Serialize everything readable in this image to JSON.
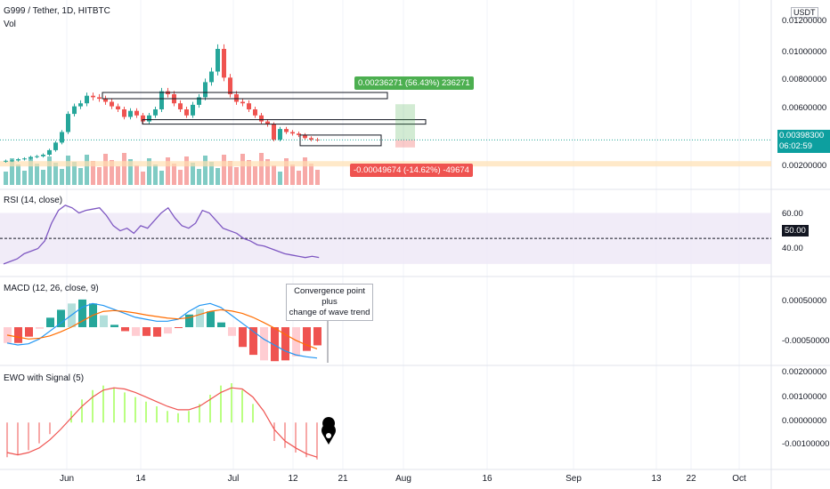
{
  "header": {
    "symbol": "G999 / Tether, 1D, HITBTC",
    "vol": "Vol",
    "currency": "USDT"
  },
  "price_axis": [
    "0.01200000",
    "0.01000000",
    "0.00800000",
    "0.00600000",
    "0.00200000"
  ],
  "current": {
    "price": "0.00398300",
    "countdown": "06:02:59"
  },
  "long_label": "0.00236271 (56.43%) 236271",
  "short_label": "-0.00049674 (-14.62%) -49674",
  "rsi": {
    "title": "RSI (14, close)",
    "ticks": [
      "60.00",
      "40.00"
    ],
    "mid": "50.00"
  },
  "macd": {
    "title": "MACD (12, 26, close, 9)",
    "ticks": [
      "0.00050000",
      "-0.00050000"
    ],
    "annotation_line1": "Convergence point plus",
    "annotation_line2": "change of wave trend"
  },
  "ewo": {
    "title": "EWO with Signal (5)",
    "ticks": [
      "0.00200000",
      "0.00100000",
      "0.00000000",
      "-0.00100000"
    ]
  },
  "x_axis": [
    "Jun",
    "14",
    "Jul",
    "12",
    "21",
    "Aug",
    "16",
    "Sep",
    "13",
    "22",
    "Oct"
  ],
  "colors": {
    "up": "#26a69a",
    "down": "#ef5350",
    "rsi_line": "#7e57c2",
    "macd_line": "#2196f3",
    "signal_line": "#ff6d00",
    "ewo_up": "#76ff03",
    "ewo_down": "#ef5350"
  },
  "chart_data": {
    "type": "candlestick",
    "interval": "1D",
    "closes": [
      0.0026,
      0.00262,
      0.0027,
      0.00275,
      0.00285,
      0.0029,
      0.003,
      0.0033,
      0.0038,
      0.0045,
      0.0057,
      0.0062,
      0.0064,
      0.0069,
      0.0068,
      0.0067,
      0.0065,
      0.0062,
      0.006,
      0.0055,
      0.0059,
      0.0056,
      0.0052,
      0.0056,
      0.006,
      0.0072,
      0.007,
      0.0064,
      0.006,
      0.0056,
      0.0063,
      0.0068,
      0.0078,
      0.0085,
      0.01,
      0.0081,
      0.007,
      0.0065,
      0.0064,
      0.006,
      0.0056,
      0.0052,
      0.005,
      0.004,
      0.0047,
      0.0045,
      0.0044,
      0.0043,
      0.0041,
      0.004,
      0.00398
    ],
    "rsi": [
      30,
      32,
      34,
      38,
      40,
      42,
      48,
      62,
      72,
      76,
      74,
      70,
      72,
      73,
      74,
      68,
      60,
      56,
      58,
      54,
      60,
      58,
      64,
      70,
      74,
      66,
      60,
      58,
      62,
      72,
      70,
      64,
      58,
      56,
      54,
      50,
      48,
      45,
      44,
      42,
      40,
      38,
      37,
      36,
      35,
      36,
      35
    ],
    "macd": [
      -0.0004,
      -0.00045,
      -0.00042,
      -0.0003,
      -0.0001,
      0.0001,
      0.0003,
      0.0005,
      0.0006,
      0.00055,
      0.00045,
      0.00035,
      0.00025,
      0.0002,
      0.00015,
      0.00015,
      0.0002,
      0.0004,
      0.00055,
      0.0006,
      0.0005,
      0.0003,
      0.0001,
      -0.0001,
      -0.0003,
      -0.00045,
      -0.0006,
      -0.0007,
      -0.00075,
      -0.00078
    ],
    "signal": [
      -0.0002,
      -0.00025,
      -0.0003,
      -0.00028,
      -0.00022,
      -0.00012,
      0.0,
      0.00015,
      0.0003,
      0.0004,
      0.00042,
      0.0004,
      0.00036,
      0.00031,
      0.00027,
      0.00023,
      0.00021,
      0.00024,
      0.00032,
      0.0004,
      0.00044,
      0.00041,
      0.00035,
      0.00025,
      0.00012,
      -2e-05,
      -0.00018,
      -0.00033,
      -0.00045,
      -0.00055
    ],
    "ewo": [
      -0.0015,
      -0.0014,
      -0.0012,
      -0.0009,
      -0.0005,
      0.0,
      0.0005,
      0.001,
      0.0014,
      0.0016,
      0.0015,
      0.0013,
      0.0011,
      0.0009,
      0.0007,
      0.0005,
      0.0004,
      0.0005,
      0.0008,
      0.0012,
      0.0016,
      0.0017,
      0.0014,
      0.0008,
      0.0,
      -0.0008,
      -0.0011,
      -0.0013,
      -0.0015,
      -0.0016
    ],
    "ewo_signal": [
      -0.0013,
      -0.0014,
      -0.0013,
      -0.0011,
      -0.00075,
      -0.0003,
      0.0002,
      0.0007,
      0.0011,
      0.0014,
      0.0015,
      0.00145,
      0.0013,
      0.0011,
      0.0009,
      0.0007,
      0.00055,
      0.00055,
      0.0007,
      0.001,
      0.0013,
      0.0015,
      0.00145,
      0.0011,
      0.0005,
      -0.0003,
      -0.0008,
      -0.0011,
      -0.00135,
      -0.0015
    ],
    "ylim_price": [
      0.001,
      0.013
    ],
    "ylim_rsi": [
      25,
      85
    ],
    "ylim_macd": [
      -0.0009,
      0.0009
    ],
    "ylim_ewo": [
      -0.0018,
      0.0022
    ]
  }
}
